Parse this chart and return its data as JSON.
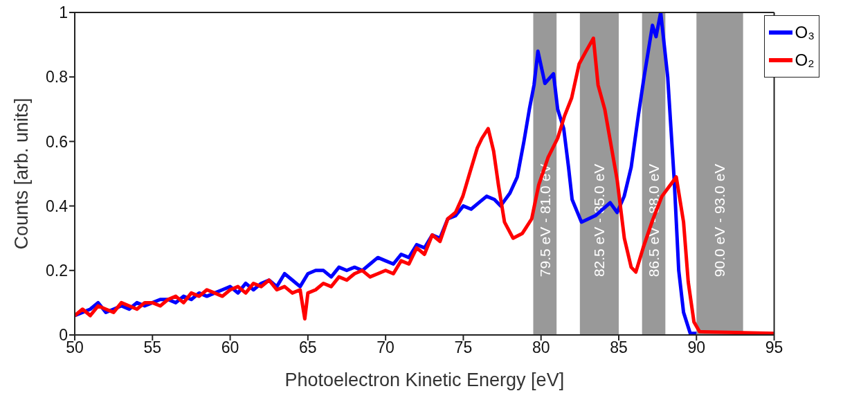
{
  "chart_data": {
    "type": "line",
    "xlabel": "Photoelectron Kinetic Energy [eV]",
    "ylabel": "Counts [arb. units]",
    "xlim": [
      50,
      95
    ],
    "xticks": [
      50,
      55,
      60,
      65,
      70,
      75,
      80,
      85,
      90,
      95
    ],
    "ylim": [
      0,
      1
    ],
    "yticks": [
      0,
      0.2,
      0.4,
      0.6,
      0.8,
      1
    ],
    "legend": "top right",
    "grid": false,
    "marker": "none",
    "line_style": "solid",
    "series": [
      {
        "name": "O₃",
        "color": "#0000ff",
        "x": [
          50,
          50.5,
          51,
          51.5,
          52,
          52.5,
          53,
          53.5,
          54,
          54.5,
          55,
          55.5,
          56,
          56.5,
          57,
          57.5,
          58,
          58.5,
          59,
          59.5,
          60,
          60.5,
          61,
          61.5,
          62,
          62.5,
          63,
          63.5,
          64,
          64.5,
          65,
          65.5,
          66,
          66.5,
          67,
          67.5,
          68,
          68.5,
          69,
          69.5,
          70,
          70.5,
          71,
          71.5,
          72,
          72.5,
          73,
          73.5,
          74,
          74.5,
          75,
          75.5,
          76,
          76.5,
          77,
          77.4,
          78,
          78.47,
          78.9,
          79.25,
          79.55,
          79.8,
          80.25,
          80.8,
          81.07,
          81.46,
          81.77,
          82.0,
          82.6,
          83.5,
          84.45,
          84.9,
          85.35,
          85.8,
          86.26,
          86.63,
          87.17,
          87.4,
          87.7,
          88.15,
          88.57,
          88.86,
          89.17,
          89.6,
          90
        ],
        "values": [
          0.06,
          0.07,
          0.08,
          0.1,
          0.07,
          0.08,
          0.09,
          0.08,
          0.1,
          0.09,
          0.1,
          0.11,
          0.11,
          0.1,
          0.12,
          0.11,
          0.13,
          0.12,
          0.13,
          0.14,
          0.15,
          0.13,
          0.16,
          0.14,
          0.16,
          0.17,
          0.15,
          0.19,
          0.17,
          0.15,
          0.19,
          0.2,
          0.2,
          0.18,
          0.21,
          0.2,
          0.21,
          0.2,
          0.22,
          0.24,
          0.23,
          0.22,
          0.25,
          0.24,
          0.28,
          0.27,
          0.31,
          0.3,
          0.36,
          0.37,
          0.4,
          0.39,
          0.41,
          0.43,
          0.42,
          0.4,
          0.44,
          0.49,
          0.6,
          0.7,
          0.775,
          0.88,
          0.78,
          0.81,
          0.7,
          0.64,
          0.52,
          0.42,
          0.35,
          0.37,
          0.41,
          0.38,
          0.43,
          0.52,
          0.68,
          0.8,
          0.96,
          0.925,
          1.0,
          0.8,
          0.48,
          0.2,
          0.07,
          0.005,
          0.005
        ]
      },
      {
        "name": "O₂",
        "color": "#ff0000",
        "x": [
          50,
          50.5,
          51,
          51.5,
          52,
          52.5,
          53,
          53.5,
          54,
          54.5,
          55,
          55.5,
          56,
          56.5,
          57,
          57.5,
          58,
          58.5,
          59,
          59.5,
          60,
          60.5,
          61,
          61.5,
          62,
          62.5,
          63,
          63.5,
          64,
          64.5,
          64.8,
          65,
          65.5,
          66,
          66.5,
          67,
          67.5,
          68,
          68.5,
          69,
          69.5,
          70,
          70.5,
          71,
          71.5,
          72,
          72.5,
          73,
          73.5,
          74,
          74.5,
          74.97,
          75.4,
          75.9,
          76.2,
          76.6,
          76.95,
          77.26,
          77.65,
          78.2,
          78.8,
          79.4,
          79.85,
          80.45,
          81.07,
          81.52,
          81.97,
          82.45,
          82.9,
          83.37,
          83.67,
          84.1,
          84.5,
          84.9,
          85.36,
          85.8,
          86.1,
          86.57,
          87.17,
          87.78,
          88.24,
          88.7,
          89.17,
          89.47,
          89.84,
          90.2,
          92,
          95
        ],
        "values": [
          0.06,
          0.08,
          0.06,
          0.09,
          0.08,
          0.07,
          0.1,
          0.09,
          0.08,
          0.1,
          0.1,
          0.09,
          0.11,
          0.12,
          0.1,
          0.13,
          0.12,
          0.14,
          0.13,
          0.12,
          0.14,
          0.15,
          0.13,
          0.16,
          0.15,
          0.17,
          0.14,
          0.15,
          0.13,
          0.14,
          0.05,
          0.13,
          0.14,
          0.16,
          0.15,
          0.18,
          0.17,
          0.19,
          0.2,
          0.18,
          0.19,
          0.2,
          0.19,
          0.23,
          0.22,
          0.27,
          0.25,
          0.31,
          0.29,
          0.36,
          0.38,
          0.43,
          0.5,
          0.58,
          0.61,
          0.64,
          0.57,
          0.465,
          0.35,
          0.3,
          0.315,
          0.36,
          0.465,
          0.55,
          0.61,
          0.68,
          0.735,
          0.84,
          0.88,
          0.92,
          0.775,
          0.7,
          0.59,
          0.48,
          0.3,
          0.21,
          0.195,
          0.27,
          0.355,
          0.43,
          0.46,
          0.49,
          0.35,
          0.165,
          0.04,
          0.01,
          0.008,
          0.005
        ]
      }
    ],
    "bands": [
      {
        "axis": "x",
        "from": 79.5,
        "to": 81.0,
        "label": "79.5 eV - 81.0 eV",
        "color": "#999999"
      },
      {
        "axis": "x",
        "from": 82.5,
        "to": 85.0,
        "label": "82.5 eV - 85.0 eV",
        "color": "#999999"
      },
      {
        "axis": "x",
        "from": 86.5,
        "to": 88.0,
        "label": "86.5 eV - 88.0 eV",
        "color": "#999999"
      },
      {
        "axis": "x",
        "from": 90.0,
        "to": 93.0,
        "label": "90.0 eV - 93.0 eV",
        "color": "#999999"
      }
    ]
  }
}
